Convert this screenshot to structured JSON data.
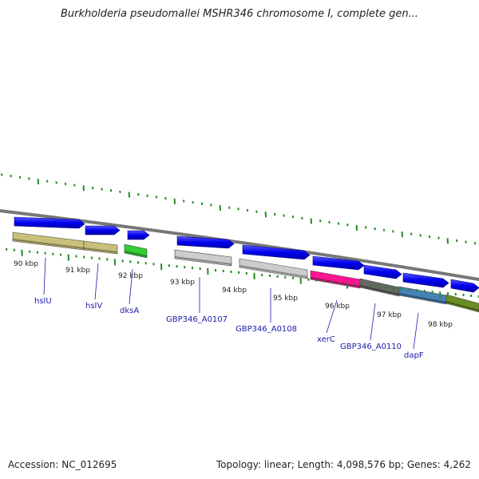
{
  "title": "Burkholderia pseudomallei MSHR346 chromosome I, complete gen...",
  "footer": {
    "accession": "Accession: NC_012695",
    "topology": "Topology: linear; Length: 4,098,576 bp; Genes: 4,262"
  },
  "kbp_labels": [
    "90 kbp",
    "91 kbp",
    "92 kbp",
    "93 kbp",
    "94 kbp",
    "95 kbp",
    "96 kbp",
    "97 kbp",
    "98 kbp"
  ],
  "genes": [
    {
      "name": "hslU",
      "color": "#c8c07a"
    },
    {
      "name": "hslV",
      "color": "#c8c07a"
    },
    {
      "name": "dksA",
      "color": "#33cc33"
    },
    {
      "name": "GBP346_A0107",
      "color": "#cccccc"
    },
    {
      "name": "GBP346_A0108",
      "color": "#cccccc"
    },
    {
      "name": "xerC",
      "color": "#ff1493"
    },
    {
      "name": "GBP346_A0110",
      "color": "#666666"
    },
    {
      "name": "dapF",
      "color": "#4682b4"
    },
    {
      "name": "",
      "color": "#6b8e23"
    }
  ],
  "colors": {
    "arrow": "#0000ee",
    "track": "#777777",
    "ticks": "#228b22",
    "label": "#1a1aaa"
  }
}
